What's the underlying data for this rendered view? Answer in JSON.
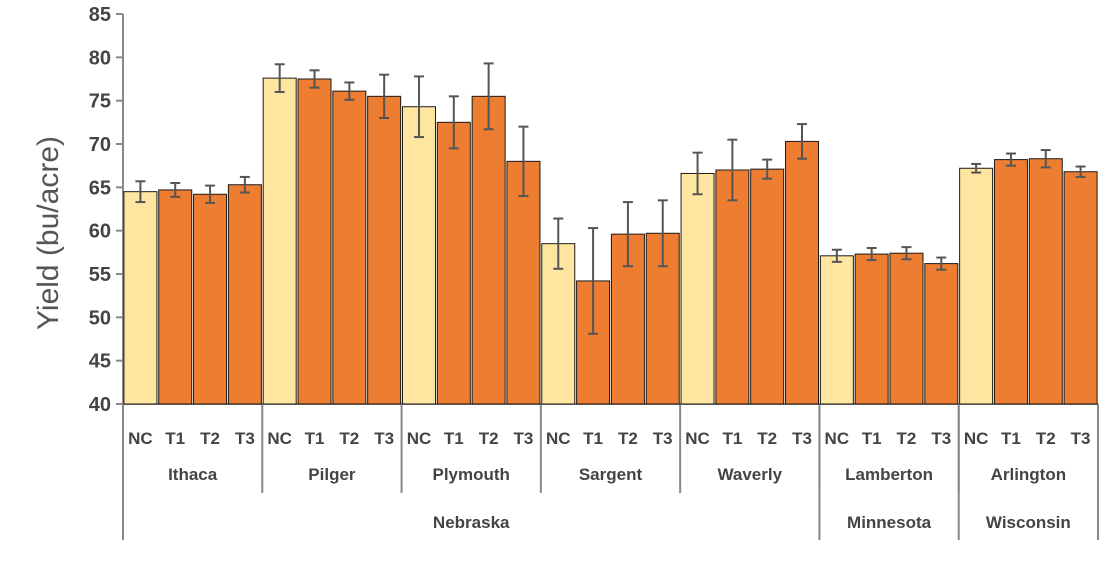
{
  "chart_data": {
    "type": "bar",
    "ylabel": "Yield (bu/acre)",
    "ylim": [
      40,
      85
    ],
    "yticks": [
      "40",
      "45",
      "50",
      "55",
      "60",
      "65",
      "70",
      "75",
      "80",
      "85"
    ],
    "grid": false,
    "colors": {
      "NC": "#FFE6A0",
      "T": "#ED7D31",
      "bar_stroke": "#1a1a1a",
      "axis": "#888888",
      "error": "#555555"
    },
    "groups": [
      {
        "location": "Ithaca",
        "state": "Nebraska",
        "treatments": [
          "NC",
          "T1",
          "T2",
          "T3"
        ],
        "values": [
          64.5,
          64.7,
          64.2,
          65.3
        ],
        "errors": [
          1.2,
          0.8,
          1.0,
          0.9
        ]
      },
      {
        "location": "Pilger",
        "state": "Nebraska",
        "treatments": [
          "NC",
          "T1",
          "T2",
          "T3"
        ],
        "values": [
          77.6,
          77.5,
          76.1,
          75.5
        ],
        "errors": [
          1.6,
          1.0,
          1.0,
          2.5
        ]
      },
      {
        "location": "Plymouth",
        "state": "Nebraska",
        "treatments": [
          "NC",
          "T1",
          "T2",
          "T3"
        ],
        "values": [
          74.3,
          72.5,
          75.5,
          68.0
        ],
        "errors": [
          3.5,
          3.0,
          3.8,
          4.0
        ]
      },
      {
        "location": "Sargent",
        "state": "Nebraska",
        "treatments": [
          "NC",
          "T1",
          "T2",
          "T3"
        ],
        "values": [
          58.5,
          54.2,
          59.6,
          59.7
        ],
        "errors": [
          2.9,
          6.1,
          3.7,
          3.8
        ]
      },
      {
        "location": "Waverly",
        "state": "Nebraska",
        "treatments": [
          "NC",
          "T1",
          "T2",
          "T3"
        ],
        "values": [
          66.6,
          67.0,
          67.1,
          70.3
        ],
        "errors": [
          2.4,
          3.5,
          1.1,
          2.0
        ]
      },
      {
        "location": "Lamberton",
        "state": "Minnesota",
        "treatments": [
          "NC",
          "T1",
          "T2",
          "T3"
        ],
        "values": [
          57.1,
          57.3,
          57.4,
          56.2
        ],
        "errors": [
          0.7,
          0.7,
          0.7,
          0.7
        ]
      },
      {
        "location": "Arlington",
        "state": "Wisconsin",
        "treatments": [
          "NC",
          "T1",
          "T2",
          "T3"
        ],
        "values": [
          67.2,
          68.2,
          68.3,
          66.8
        ],
        "errors": [
          0.5,
          0.7,
          1.0,
          0.6
        ]
      }
    ],
    "states": [
      "Nebraska",
      "Minnesota",
      "Wisconsin"
    ]
  }
}
